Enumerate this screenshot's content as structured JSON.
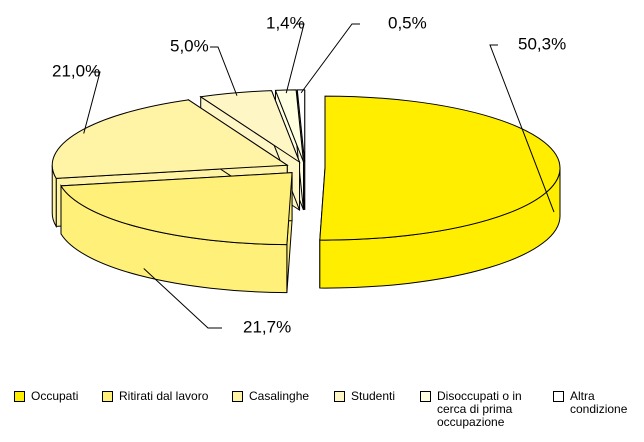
{
  "chart_data": {
    "type": "pie",
    "categories": [
      "Occupati",
      "Ritirati dal lavoro",
      "Casalinghe",
      "Studenti",
      "Disoccupati o in cerca di prima occupazione",
      "Altra condizione"
    ],
    "values": [
      50.3,
      21.7,
      21.0,
      5.0,
      1.4,
      0.5
    ],
    "value_labels": [
      "50,3%",
      "21,7%",
      "21,0%",
      "5,0%",
      "1,4%",
      "0,5%"
    ],
    "colors": [
      "#ffee00",
      "#fff07a",
      "#fff3a6",
      "#fff6c6",
      "#ffffe2",
      "#ffffff"
    ],
    "legend": "bottom"
  }
}
